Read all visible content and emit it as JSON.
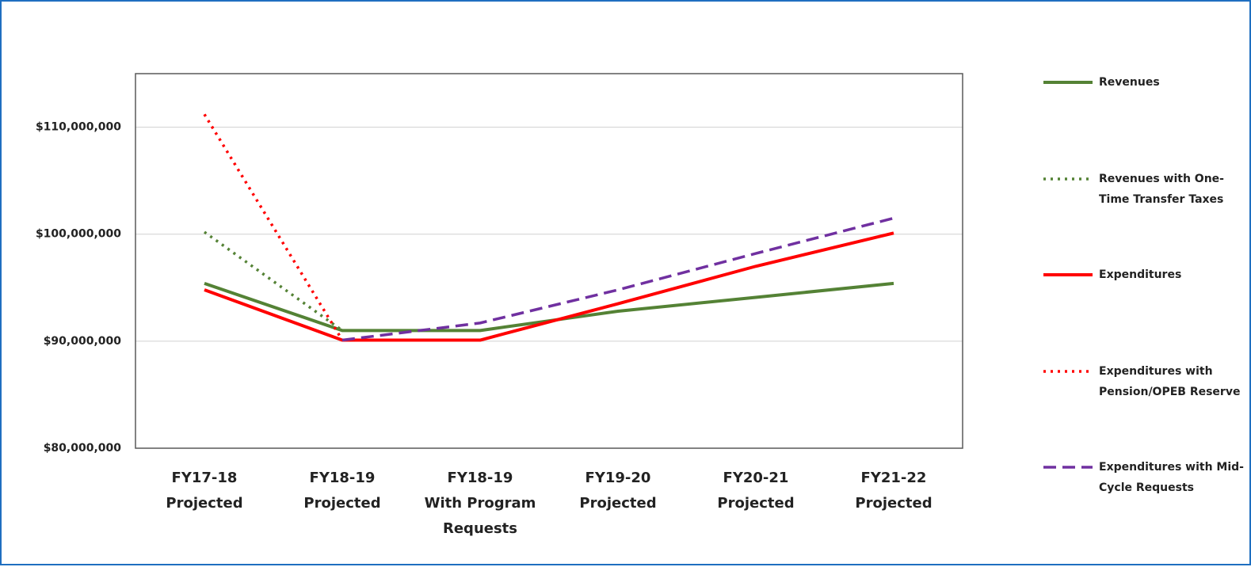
{
  "chart_data": {
    "type": "line",
    "categories": [
      [
        "FY17-18",
        "Projected"
      ],
      [
        "FY18-19",
        "Projected"
      ],
      [
        "FY18-19",
        "With Program",
        "Requests"
      ],
      [
        "FY19-20",
        "Projected"
      ],
      [
        "FY20-21",
        "Projected"
      ],
      [
        "FY21-22",
        "Projected"
      ]
    ],
    "series": [
      {
        "name": "Revenues",
        "color": "#548235",
        "style": "solid",
        "values": [
          95400000,
          91000000,
          91000000,
          92800000,
          94100000,
          95400000
        ]
      },
      {
        "name": "Revenues with One-Time Transfer Taxes",
        "color": "#548235",
        "style": "dotted",
        "values": [
          100200000,
          91000000,
          null,
          null,
          null,
          null
        ]
      },
      {
        "name": "Expenditures",
        "color": "#ff0000",
        "style": "solid",
        "values": [
          94800000,
          90100000,
          90100000,
          93500000,
          97000000,
          100100000
        ]
      },
      {
        "name": "Expenditures with Pension/OPEB Reserve",
        "color": "#ff0000",
        "style": "dotted",
        "values": [
          111200000,
          90100000,
          null,
          null,
          null,
          null
        ]
      },
      {
        "name": "Expenditures with Mid-Cycle Requests",
        "color": "#7030a0",
        "style": "dashed",
        "values": [
          null,
          90100000,
          91700000,
          94800000,
          98200000,
          101500000
        ]
      }
    ],
    "ylim": [
      80000000,
      115000000
    ],
    "yticks": [
      {
        "value": 80000000,
        "label": "$80,000,000"
      },
      {
        "value": 90000000,
        "label": "$90,000,000"
      },
      {
        "value": 100000000,
        "label": "$100,000,000"
      },
      {
        "value": 110000000,
        "label": "$110,000,000"
      }
    ],
    "grid": true,
    "legend": "right"
  }
}
